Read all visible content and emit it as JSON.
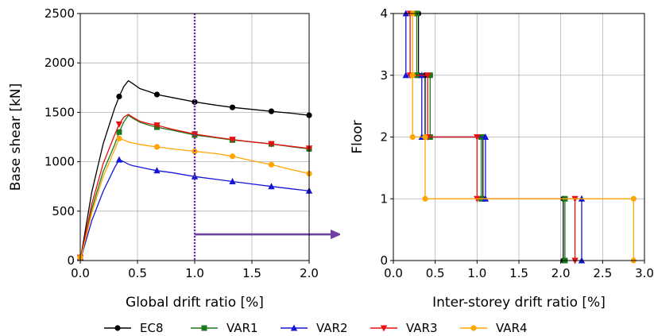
{
  "chart_data": [
    {
      "type": "line",
      "xlabel": "Global drift ratio [%]",
      "ylabel": "Base shear [kN]",
      "xlim": [
        0,
        2
      ],
      "ylim": [
        0,
        2500
      ],
      "xticks": [
        "0.0",
        "0.5",
        "1.0",
        "1.5",
        "2.0"
      ],
      "yticks": [
        "0",
        "500",
        "1000",
        "1500",
        "2000",
        "2500"
      ],
      "grid": true,
      "annotations": [
        {
          "type": "dotted-vertical-line",
          "x": 1.0,
          "color": "#7a2e9e"
        },
        {
          "type": "arrow",
          "from_x": 1.0,
          "y": 265,
          "direction": "right",
          "color": "#7040a0"
        }
      ],
      "series": [
        {
          "name": "EC8",
          "color": "#000000",
          "marker": "circle",
          "x": [
            0,
            0.1,
            0.2,
            0.3,
            0.34,
            0.38,
            0.42,
            0.46,
            0.52,
            0.6,
            0.67,
            0.8,
            1.0,
            1.2,
            1.33,
            1.5,
            1.67,
            1.85,
            2.0
          ],
          "y": [
            0,
            690,
            1180,
            1540,
            1660,
            1760,
            1820,
            1790,
            1740,
            1710,
            1680,
            1650,
            1605,
            1570,
            1550,
            1530,
            1510,
            1490,
            1470
          ],
          "marker_x": [
            0,
            0.34,
            0.67,
            1.0,
            1.33,
            1.67,
            2.0
          ],
          "marker_y": [
            30,
            1660,
            1680,
            1605,
            1550,
            1510,
            1470
          ]
        },
        {
          "name": "VAR1",
          "color": "#1a7a1a",
          "marker": "square",
          "x": [
            0,
            0.1,
            0.2,
            0.3,
            0.34,
            0.38,
            0.42,
            0.46,
            0.52,
            0.6,
            0.67,
            0.8,
            1.0,
            1.2,
            1.33,
            1.5,
            1.67,
            1.85,
            2.0
          ],
          "y": [
            0,
            520,
            900,
            1170,
            1300,
            1400,
            1470,
            1440,
            1400,
            1370,
            1350,
            1320,
            1270,
            1240,
            1220,
            1200,
            1180,
            1150,
            1130
          ],
          "marker_x": [
            0,
            0.34,
            0.67,
            1.0,
            1.33,
            1.67,
            2.0
          ],
          "marker_y": [
            30,
            1300,
            1350,
            1270,
            1220,
            1180,
            1130
          ]
        },
        {
          "name": "VAR2",
          "color": "#1515d8",
          "marker": "triangle-up",
          "x": [
            0,
            0.1,
            0.2,
            0.3,
            0.34,
            0.38,
            0.42,
            0.46,
            0.52,
            0.6,
            0.67,
            0.8,
            1.0,
            1.2,
            1.33,
            1.5,
            1.67,
            1.85,
            2.0
          ],
          "y": [
            0,
            400,
            700,
            940,
            1020,
            1000,
            975,
            960,
            945,
            925,
            910,
            890,
            850,
            820,
            800,
            775,
            750,
            725,
            705
          ],
          "marker_x": [
            0,
            0.34,
            0.67,
            1.0,
            1.33,
            1.67,
            2.0
          ],
          "marker_y": [
            30,
            1020,
            910,
            850,
            800,
            750,
            705
          ]
        },
        {
          "name": "VAR3",
          "color": "#e81010",
          "marker": "triangle-down",
          "x": [
            0,
            0.1,
            0.2,
            0.3,
            0.34,
            0.38,
            0.42,
            0.46,
            0.52,
            0.6,
            0.67,
            0.8,
            1.0,
            1.2,
            1.33,
            1.5,
            1.67,
            1.85,
            2.0
          ],
          "y": [
            0,
            570,
            980,
            1270,
            1380,
            1450,
            1480,
            1450,
            1410,
            1385,
            1370,
            1330,
            1280,
            1245,
            1225,
            1200,
            1180,
            1155,
            1135
          ],
          "marker_x": [
            0,
            0.34,
            0.67,
            1.0,
            1.33,
            1.67,
            2.0
          ],
          "marker_y": [
            30,
            1380,
            1370,
            1280,
            1225,
            1180,
            1135
          ]
        },
        {
          "name": "VAR4",
          "color": "#ffa500",
          "marker": "circle",
          "x": [
            0,
            0.1,
            0.2,
            0.3,
            0.34,
            0.38,
            0.42,
            0.46,
            0.52,
            0.6,
            0.67,
            0.8,
            1.0,
            1.2,
            1.33,
            1.5,
            1.67,
            1.85,
            2.0
          ],
          "y": [
            0,
            480,
            850,
            1120,
            1235,
            1220,
            1200,
            1190,
            1175,
            1160,
            1150,
            1130,
            1105,
            1080,
            1055,
            1010,
            970,
            920,
            880
          ],
          "marker_x": [
            0,
            0.34,
            0.67,
            1.0,
            1.33,
            1.67,
            2.0
          ],
          "marker_y": [
            30,
            1235,
            1150,
            1105,
            1055,
            970,
            880
          ]
        }
      ]
    },
    {
      "type": "line",
      "xlabel": "Inter-storey drift ratio [%]",
      "ylabel": "Floor",
      "xlim": [
        0,
        3
      ],
      "ylim": [
        0,
        4
      ],
      "xticks": [
        "0.0",
        "0.5",
        "1.0",
        "1.5",
        "2.0",
        "2.5",
        "3.0"
      ],
      "yticks": [
        "0",
        "1",
        "2",
        "3",
        "4"
      ],
      "grid": true,
      "step": "storey-profile",
      "series": [
        {
          "name": "EC8",
          "color": "#000000",
          "marker": "circle",
          "floors": [
            0,
            1,
            2,
            3,
            4
          ],
          "drift_per_storey": [
            2.03,
            1.07,
            0.38,
            0.3
          ]
        },
        {
          "name": "VAR1",
          "color": "#1a7a1a",
          "marker": "square",
          "floors": [
            0,
            1,
            2,
            3,
            4
          ],
          "drift_per_storey": [
            2.05,
            1.05,
            0.44,
            0.28
          ]
        },
        {
          "name": "VAR2",
          "color": "#1515d8",
          "marker": "triangle-up",
          "floors": [
            0,
            1,
            2,
            3,
            4
          ],
          "drift_per_storey": [
            2.25,
            1.1,
            0.34,
            0.15
          ]
        },
        {
          "name": "VAR3",
          "color": "#e81010",
          "marker": "triangle-down",
          "floors": [
            0,
            1,
            2,
            3,
            4
          ],
          "drift_per_storey": [
            2.17,
            1.0,
            0.41,
            0.2
          ]
        },
        {
          "name": "VAR4",
          "color": "#ffa500",
          "marker": "circle",
          "floors": [
            0,
            1,
            2,
            3,
            4
          ],
          "drift_per_storey": [
            2.87,
            0.38,
            0.23,
            0.23
          ]
        }
      ]
    }
  ],
  "legend": {
    "position": "bottom-center",
    "entries": [
      "EC8",
      "VAR1",
      "VAR2",
      "VAR3",
      "VAR4"
    ]
  }
}
